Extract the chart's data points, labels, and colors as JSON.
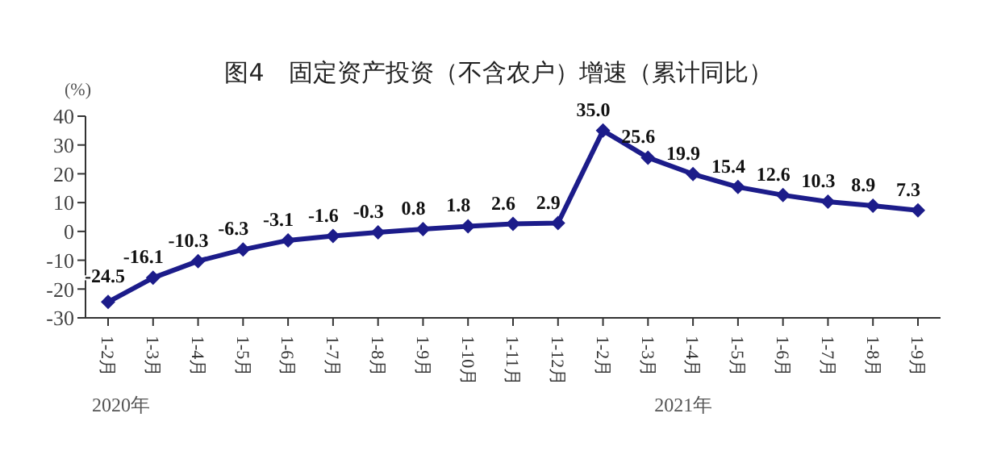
{
  "chart_data": {
    "type": "line",
    "title": "图4　固定资产投资（不含农户）增速（累计同比）",
    "ylabel": "(%)",
    "categories": [
      "1-2月",
      "1-3月",
      "1-4月",
      "1-5月",
      "1-6月",
      "1-7月",
      "1-8月",
      "1-9月",
      "1-10月",
      "1-11月",
      "1-12月",
      "1-2月",
      "1-3月",
      "1-4月",
      "1-5月",
      "1-6月",
      "1-7月",
      "1-8月",
      "1-9月"
    ],
    "series": [
      {
        "color": "#1c1c8a",
        "values": [
          -24.5,
          -16.1,
          -10.3,
          -6.3,
          -3.1,
          -1.6,
          -0.3,
          0.8,
          1.8,
          2.6,
          2.9,
          35.0,
          25.6,
          19.9,
          15.4,
          12.6,
          10.3,
          8.9,
          7.3
        ]
      }
    ],
    "ylim": [
      -30,
      40
    ],
    "yticks": [
      -30,
      -20,
      -10,
      0,
      10,
      20,
      30,
      40
    ],
    "annotations": [
      "2020年",
      "2021年"
    ],
    "value_labels": [
      "-24.5",
      "-16.1",
      "-10.3",
      "-6.3",
      "-3.1",
      "-1.6",
      "-0.3",
      "0.8",
      "1.8",
      "2.6",
      "2.9",
      "35.0",
      "25.6",
      "19.9",
      "15.4",
      "12.6",
      "10.3",
      "8.9",
      "7.3"
    ],
    "marker": "diamond",
    "line_style": "solid",
    "grid": false,
    "legend": false
  }
}
